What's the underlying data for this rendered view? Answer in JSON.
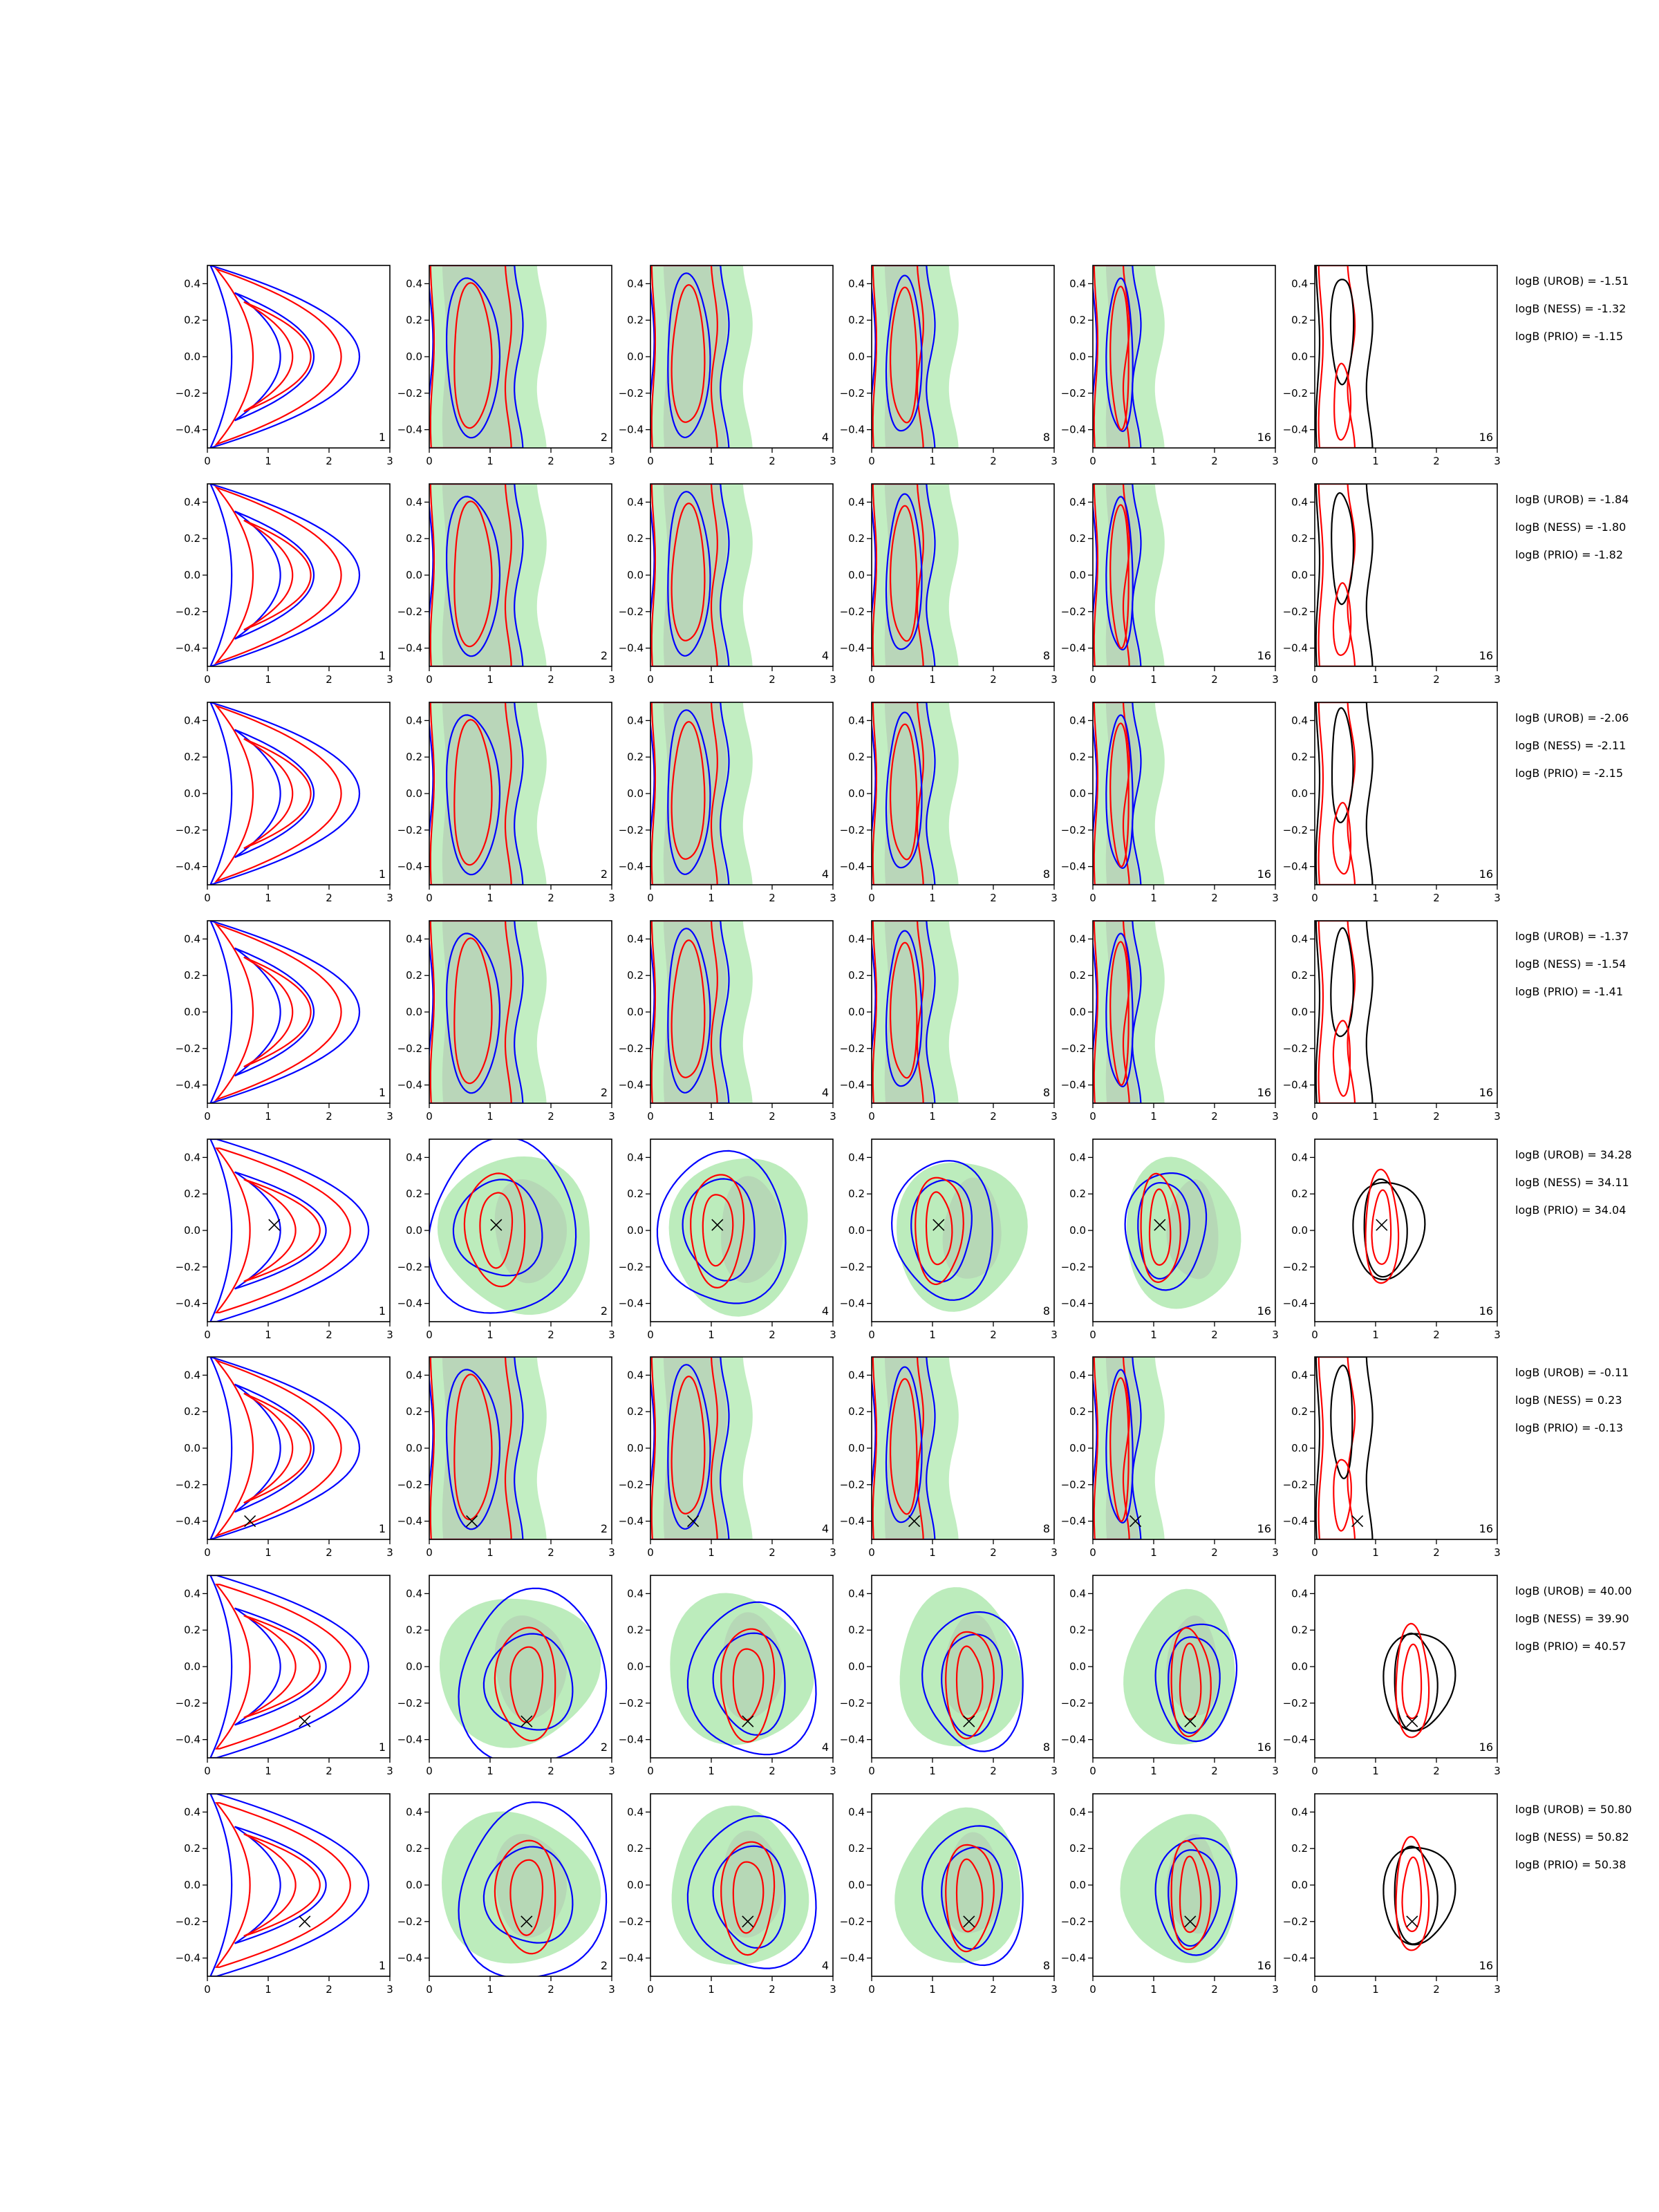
{
  "colors": {
    "blue": "#0000ff",
    "red": "#ff0000",
    "black": "#000000",
    "green_fill": "#90e090",
    "grey_fill": "#a9a9a9"
  },
  "chart_data": {
    "type": "contour-grid",
    "title": "",
    "xlabel": "",
    "ylabel": "",
    "xlim": [
      0,
      3
    ],
    "ylim": [
      -0.5,
      0.5
    ],
    "xticks": [
      0,
      1,
      2,
      3
    ],
    "yticks": [
      -0.4,
      -0.2,
      0.0,
      0.2,
      0.4
    ],
    "ytick_labels": [
      "−0.4",
      "−0.2",
      "0.0",
      "0.2",
      "0.4"
    ],
    "grid": false,
    "column_labels": [
      "1",
      "2",
      "4",
      "8",
      "16",
      "16"
    ],
    "rows": [
      {
        "marker": null,
        "logB": {
          "UROB": "-1.51",
          "NESS": "-1.32",
          "PRIO": "-1.15"
        },
        "labels": [
          "logB (UROB) = -1.51",
          "logB (NESS) = -1.32",
          "logB (PRIO) = -1.15"
        ]
      },
      {
        "marker": null,
        "logB": {
          "UROB": "-1.84",
          "NESS": "-1.80",
          "PRIO": "-1.82"
        },
        "labels": [
          "logB (UROB) = -1.84",
          "logB (NESS) = -1.80",
          "logB (PRIO) = -1.82"
        ]
      },
      {
        "marker": null,
        "logB": {
          "UROB": "-2.06",
          "NESS": "-2.11",
          "PRIO": "-2.15"
        },
        "labels": [
          "logB (UROB) = -2.06",
          "logB (NESS) = -2.11",
          "logB (PRIO) = -2.15"
        ]
      },
      {
        "marker": null,
        "logB": {
          "UROB": "-1.37",
          "NESS": "-1.54",
          "PRIO": "-1.41"
        },
        "labels": [
          "logB (UROB) = -1.37",
          "logB (NESS) = -1.54",
          "logB (PRIO) = -1.41"
        ]
      },
      {
        "marker": [
          1.1,
          0.03
        ],
        "logB": {
          "UROB": "34.28",
          "NESS": "34.11",
          "PRIO": "34.04"
        },
        "labels": [
          "logB (UROB) = 34.28",
          "logB (NESS) = 34.11",
          "logB (PRIO) = 34.04"
        ]
      },
      {
        "marker": [
          0.7,
          -0.4
        ],
        "logB": {
          "UROB": "-0.11",
          "NESS": "0.23",
          "PRIO": "-0.13"
        },
        "labels": [
          "logB (UROB) = -0.11",
          "logB (NESS) = 0.23",
          "logB (PRIO) = -0.13"
        ]
      },
      {
        "marker": [
          1.6,
          -0.3
        ],
        "logB": {
          "UROB": "40.00",
          "NESS": "39.90",
          "PRIO": "40.57"
        },
        "labels": [
          "logB (UROB) = 40.00",
          "logB (NESS) = 39.90",
          "logB (PRIO) = 40.57"
        ]
      },
      {
        "marker": [
          1.6,
          -0.2
        ],
        "logB": {
          "UROB": "50.80",
          "NESS": "50.82",
          "PRIO": "50.38"
        },
        "labels": [
          "logB (UROB) = 50.80",
          "logB (NESS) = 50.82",
          "logB (PRIO) = 50.38"
        ]
      }
    ]
  }
}
